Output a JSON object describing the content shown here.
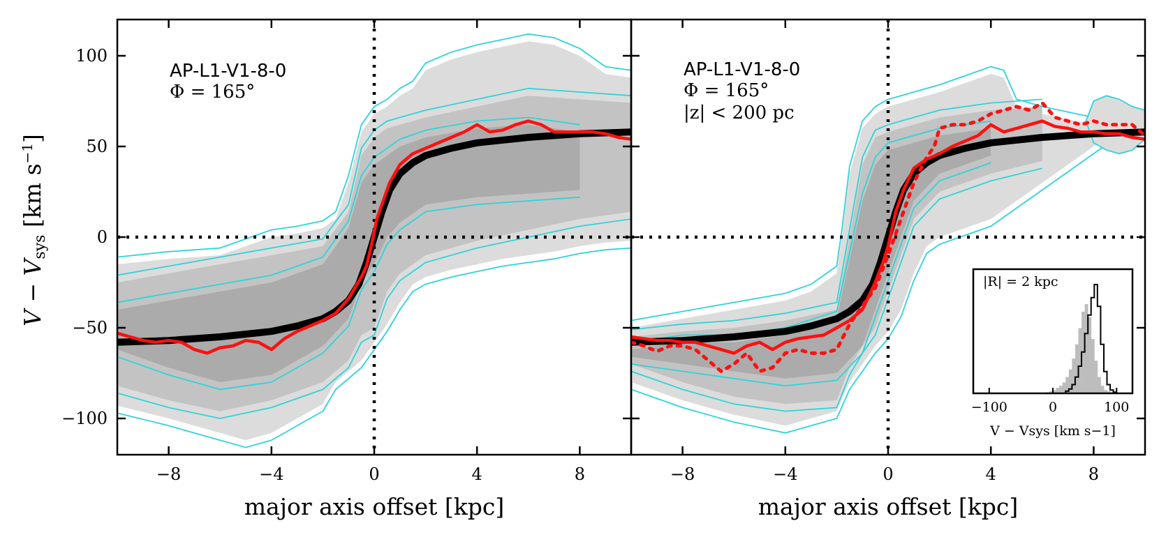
{
  "figure": {
    "ylabel": "V − V",
    "ylabel_sub": "sys",
    "ylabel_unit": " [km s",
    "ylabel_unit_sup": "−1",
    "ylabel_unit_end": "]",
    "xlabel": "major axis offset [kpc]"
  },
  "colors": {
    "band_light": "#dcdcdc",
    "band_mid": "#c3c3c3",
    "band_dark": "#ababab",
    "contour": "#2fd3d8",
    "model": "#000000",
    "data": "#ff1010"
  },
  "chart_data": [
    {
      "type": "line",
      "panel": "left",
      "title": "AP-L1-V1-8-0",
      "label_line2": "Φ = 165°",
      "xlabel": "major axis offset [kpc]",
      "ylabel": "V − Vsys [km s−1]",
      "xlim": [
        -10,
        10
      ],
      "ylim": [
        -120,
        120
      ],
      "xticks": [
        -8,
        -4,
        0,
        4,
        8
      ],
      "xtick_labels": [
        "−8",
        "−4",
        "0",
        "4",
        "8"
      ],
      "yticks": [
        -100,
        -50,
        0,
        50,
        100
      ],
      "ytick_labels": [
        "−100",
        "−50",
        "0",
        "50",
        "100"
      ],
      "reference_lines": {
        "x": 0,
        "y": 0,
        "style": "dotted"
      },
      "series": [
        {
          "name": "model rotation curve",
          "style": "thick-black",
          "x": [
            -10,
            -8,
            -6,
            -4,
            -3,
            -2,
            -1.5,
            -1,
            -0.6,
            -0.3,
            0,
            0.3,
            0.6,
            1,
            1.5,
            2,
            3,
            4,
            6,
            8,
            10
          ],
          "y": [
            -58,
            -57,
            -55,
            -52,
            -49,
            -45,
            -41,
            -35,
            -26,
            -14,
            0,
            14,
            26,
            35,
            41,
            45,
            49,
            52,
            55,
            57,
            58
          ]
        },
        {
          "name": "measured velocity",
          "style": "red-solid",
          "x": [
            -10,
            -9.5,
            -9,
            -8.5,
            -8,
            -7.5,
            -7,
            -6.5,
            -6,
            -5.5,
            -5,
            -4.5,
            -4,
            -3.5,
            -3,
            -2.5,
            -2,
            -1.5,
            -1,
            -0.5,
            -0.3,
            -0.1,
            0.1,
            0.3,
            0.6,
            1,
            1.5,
            2,
            2.5,
            3,
            3.5,
            4,
            4.5,
            5,
            5.5,
            6,
            6.5,
            7,
            7.5,
            8,
            8.5,
            9,
            9.5,
            10
          ],
          "y": [
            -53,
            -55,
            -57,
            -58,
            -57,
            -58,
            -62,
            -64,
            -61,
            -60,
            -57,
            -58,
            -62,
            -56,
            -52,
            -49,
            -46,
            -42,
            -34,
            -22,
            -16,
            -4,
            10,
            18,
            30,
            40,
            46,
            49,
            52,
            55,
            58,
            62,
            58,
            59,
            62,
            64,
            62,
            58,
            58,
            58,
            58,
            57,
            55,
            54
          ]
        }
      ],
      "contours": [
        {
          "level": "outer",
          "upper_x": [
            -10,
            -8,
            -6,
            -5,
            -4,
            -3,
            -2,
            -1.5,
            -1,
            -0.5,
            0,
            0.5,
            1,
            1.5,
            2,
            3,
            4,
            5,
            6,
            7,
            8,
            9,
            10
          ],
          "upper_y": [
            -15,
            -12,
            -10,
            -5,
            0,
            2,
            5,
            10,
            30,
            58,
            68,
            72,
            78,
            82,
            92,
            98,
            102,
            105,
            108,
            106,
            100,
            90,
            88
          ],
          "lower_x": [
            -10,
            -8,
            -6,
            -5,
            -4,
            -3,
            -2,
            -1.5,
            -1,
            -0.5,
            0,
            0.5,
            1,
            1.5,
            2,
            3,
            4,
            5,
            6,
            7,
            8,
            9,
            10
          ],
          "lower_y": [
            -93,
            -100,
            -108,
            -112,
            -108,
            -100,
            -92,
            -80,
            -74,
            -68,
            -58,
            -48,
            -36,
            -26,
            -22,
            -18,
            -15,
            -12,
            -10,
            -8,
            -5,
            -3,
            -2
          ]
        },
        {
          "level": "middle",
          "upper_x": [
            -10,
            -8,
            -6,
            -4,
            -2,
            -1,
            -0.5,
            0,
            0.5,
            1,
            2,
            4,
            6,
            8,
            10
          ],
          "upper_y": [
            -25,
            -20,
            -15,
            -10,
            -5,
            14,
            45,
            55,
            60,
            62,
            66,
            72,
            78,
            76,
            74
          ],
          "lower_x": [
            -10,
            -8,
            -6,
            -4,
            -2,
            -1,
            -0.5,
            0,
            0.5,
            1,
            2,
            4,
            6,
            8,
            10
          ],
          "lower_y": [
            -82,
            -90,
            -96,
            -90,
            -80,
            -68,
            -54,
            -50,
            -30,
            -20,
            -10,
            -2,
            4,
            10,
            14
          ]
        },
        {
          "level": "inner",
          "upper_x": [
            -10,
            -8,
            -6,
            -4,
            -2,
            -1,
            -0.5,
            0,
            0.5,
            1,
            2,
            4,
            6,
            8
          ],
          "upper_y": [
            -40,
            -35,
            -30,
            -25,
            -15,
            5,
            30,
            40,
            45,
            50,
            55,
            60,
            62,
            58
          ],
          "lower_x": [
            -10,
            -8,
            -6,
            -4,
            -2,
            -1,
            -0.5,
            0,
            0.5,
            1,
            2,
            4,
            6,
            8
          ],
          "lower_y": [
            -62,
            -72,
            -80,
            -76,
            -60,
            -45,
            -25,
            -15,
            0,
            8,
            18,
            22,
            24,
            26
          ]
        }
      ]
    },
    {
      "type": "line",
      "panel": "right",
      "title": "AP-L1-V1-8-0",
      "label_line2": "Φ = 165°",
      "label_line3": "|z| < 200 pc",
      "xlabel": "major axis offset [kpc]",
      "xlim": [
        -10,
        10
      ],
      "ylim": [
        -120,
        120
      ],
      "xticks": [
        -8,
        -4,
        0,
        4,
        8
      ],
      "xtick_labels": [
        "−8",
        "−4",
        "0",
        "4",
        "8"
      ],
      "reference_lines": {
        "x": 0,
        "y": 0,
        "style": "dotted"
      },
      "series": [
        {
          "name": "model rotation curve",
          "style": "thick-black",
          "x": [
            -10,
            -8,
            -6,
            -4,
            -3,
            -2,
            -1.5,
            -1,
            -0.6,
            -0.3,
            0,
            0.3,
            0.6,
            1,
            1.5,
            2,
            3,
            4,
            6,
            8,
            10
          ],
          "y": [
            -58,
            -57,
            -55,
            -52,
            -49,
            -45,
            -41,
            -35,
            -26,
            -14,
            0,
            14,
            26,
            35,
            41,
            45,
            49,
            52,
            55,
            57,
            58
          ]
        },
        {
          "name": "measured velocity (all)",
          "style": "red-solid",
          "x": [
            -10,
            -9.5,
            -9,
            -8.5,
            -8,
            -7.5,
            -7,
            -6.5,
            -6,
            -5.5,
            -5,
            -4.5,
            -4,
            -3.5,
            -3,
            -2.5,
            -2,
            -1.5,
            -1,
            -0.5,
            -0.2,
            0,
            0.3,
            0.6,
            1,
            1.5,
            2,
            2.5,
            3,
            3.5,
            4,
            4.5,
            5,
            5.5,
            6,
            6.5,
            7,
            7.5,
            8,
            8.5,
            9,
            9.5,
            10
          ],
          "y": [
            -55,
            -56,
            -57,
            -57,
            -58,
            -58,
            -60,
            -62,
            -64,
            -60,
            -58,
            -62,
            -58,
            -56,
            -55,
            -54,
            -50,
            -46,
            -40,
            -25,
            -14,
            -5,
            14,
            26,
            38,
            43,
            46,
            50,
            53,
            56,
            62,
            58,
            60,
            62,
            64,
            61,
            60,
            58,
            58,
            57,
            57,
            55,
            54
          ]
        },
        {
          "name": "measured velocity (|z| < 200 pc)",
          "style": "red-dotted",
          "x": [
            -10,
            -9.5,
            -9,
            -8.5,
            -8,
            -7.5,
            -7,
            -6.5,
            -6,
            -5.5,
            -5,
            -4.5,
            -4,
            -3.5,
            -3,
            -2.5,
            -2,
            -1.5,
            -1,
            -0.5,
            0,
            0.5,
            1,
            1.5,
            1.8,
            2,
            2.5,
            3,
            3.5,
            4,
            4.5,
            5,
            5.5,
            6,
            6.5,
            7,
            7.5,
            8,
            8.5,
            9,
            9.5,
            10
          ],
          "y": [
            -58,
            -60,
            -63,
            -60,
            -60,
            -62,
            -68,
            -74,
            -70,
            -64,
            -74,
            -72,
            -64,
            -62,
            -64,
            -64,
            -62,
            -48,
            -38,
            -28,
            -10,
            10,
            30,
            44,
            50,
            60,
            62,
            62,
            64,
            68,
            70,
            72,
            70,
            74,
            66,
            64,
            62,
            64,
            62,
            62,
            62,
            56
          ]
        }
      ],
      "contours": [
        {
          "level": "outer",
          "upper_x": [
            -10,
            -8,
            -6,
            -4,
            -3,
            -2,
            -1.8,
            -1.5,
            -1,
            -0.5,
            0,
            0.5,
            1,
            1.5,
            2,
            3,
            4,
            4.5,
            5,
            6,
            7,
            8,
            9,
            10
          ],
          "upper_y": [
            -50,
            -45,
            -40,
            -35,
            -30,
            -20,
            0,
            35,
            60,
            68,
            72,
            74,
            76,
            78,
            80,
            85,
            90,
            88,
            72,
            68,
            65,
            62,
            60,
            58
          ],
          "lower_x": [
            -10,
            -8,
            -6,
            -4,
            -3,
            -2,
            -1.5,
            -1,
            -0.5,
            0,
            0.5,
            1,
            1.5,
            2,
            3,
            4,
            5,
            6,
            7,
            8,
            9,
            10
          ],
          "lower_y": [
            -80,
            -90,
            -98,
            -104,
            -100,
            -96,
            -80,
            -70,
            -60,
            -52,
            -40,
            -20,
            -5,
            0,
            5,
            10,
            20,
            30,
            40,
            50,
            60,
            62
          ]
        },
        {
          "level": "middle",
          "upper_x": [
            -10,
            -8,
            -6,
            -4,
            -2,
            -1.5,
            -1,
            -0.5,
            0,
            0.5,
            1,
            2,
            4,
            6
          ],
          "upper_y": [
            -55,
            -52,
            -50,
            -46,
            -40,
            0,
            40,
            55,
            58,
            60,
            62,
            66,
            70,
            72
          ],
          "lower_x": [
            -10,
            -8,
            -6,
            -4,
            -2,
            -1.5,
            -1,
            -0.5,
            0,
            0.5,
            1,
            2,
            4,
            6
          ],
          "lower_y": [
            -70,
            -80,
            -88,
            -92,
            -90,
            -72,
            -60,
            -50,
            -30,
            -10,
            10,
            25,
            35,
            42
          ]
        },
        {
          "level": "inner",
          "upper_x": [
            -10,
            -8,
            -6,
            -4,
            -2,
            -1,
            -0.5,
            0,
            0.5,
            1,
            2,
            4
          ],
          "upper_y": [
            -62,
            -58,
            -58,
            -54,
            -45,
            20,
            40,
            48,
            50,
            52,
            56,
            60
          ],
          "lower_x": [
            -10,
            -8,
            -6,
            -4,
            -2,
            -1,
            -0.5,
            0,
            0.5,
            1,
            2,
            4
          ],
          "lower_y": [
            -66,
            -70,
            -74,
            -78,
            -75,
            -60,
            -40,
            -20,
            0,
            20,
            35,
            45
          ]
        }
      ],
      "extra_contour": {
        "name": "right-edge loop",
        "x": [
          8,
          8.5,
          9,
          9.5,
          10,
          10,
          9.5,
          9,
          8.5,
          8,
          7.7,
          8
        ],
        "y": [
          75,
          78,
          76,
          72,
          70,
          54,
          48,
          46,
          48,
          52,
          64,
          75
        ]
      }
    },
    {
      "type": "bar",
      "panel": "inset",
      "label": "|R| = 2 kpc",
      "xlabel": "V − Vsys [km s−1]",
      "xlim": [
        -125,
        125
      ],
      "xticks": [
        -100,
        0,
        100
      ],
      "xtick_labels": [
        "−100",
        "0",
        "100"
      ],
      "series": [
        {
          "name": "filled histogram",
          "style": "grey-filled",
          "bins": [
            -10,
            -5,
            0,
            5,
            10,
            15,
            20,
            25,
            30,
            35,
            40,
            45,
            50,
            55,
            60,
            65,
            70,
            75,
            80,
            85,
            90,
            95
          ],
          "values": [
            0.01,
            0.02,
            0.03,
            0.05,
            0.07,
            0.1,
            0.15,
            0.22,
            0.32,
            0.45,
            0.6,
            0.75,
            0.82,
            0.7,
            0.5,
            0.3,
            0.15,
            0.07,
            0.03,
            0.02,
            0.01,
            0.005
          ]
        },
        {
          "name": "step histogram",
          "style": "black-step",
          "bins": [
            20,
            25,
            30,
            35,
            40,
            45,
            50,
            55,
            60,
            65,
            70,
            75,
            80,
            85,
            90,
            95,
            100
          ],
          "values": [
            0.02,
            0.04,
            0.08,
            0.15,
            0.25,
            0.38,
            0.55,
            0.72,
            0.88,
            1.0,
            0.8,
            0.45,
            0.2,
            0.08,
            0.03,
            0.01,
            0.0
          ]
        }
      ]
    }
  ]
}
